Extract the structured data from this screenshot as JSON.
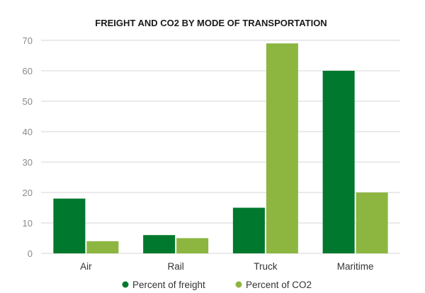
{
  "chart_data": {
    "type": "bar",
    "title": "FREIGHT AND CO2 BY MODE OF TRANSPORTATION",
    "categories": [
      "Air",
      "Rail",
      "Truck",
      "Maritime"
    ],
    "series": [
      {
        "name": "Percent of freight",
        "values": [
          18,
          6,
          15,
          60
        ],
        "color": "#00782d"
      },
      {
        "name": "Percent of CO2",
        "values": [
          4,
          5,
          69,
          20
        ],
        "color": "#8cb640"
      }
    ],
    "yticks": [
      "0",
      "10",
      "20",
      "30",
      "40",
      "50",
      "60",
      "70"
    ],
    "ylim": [
      0,
      70
    ],
    "grid": true,
    "legend_position": "bottom"
  }
}
